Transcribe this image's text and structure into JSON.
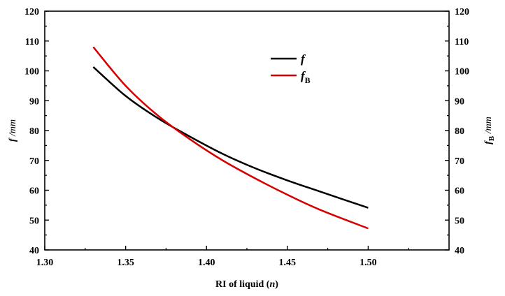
{
  "chart_data": {
    "type": "line",
    "xlabel_parts": [
      "RI of liquid (",
      "n",
      ")"
    ],
    "ylabel_left_parts": [
      "f",
      " /mm"
    ],
    "ylabel_right_parts": [
      "f",
      "B",
      " /mm"
    ],
    "xlim": [
      1.3,
      1.55
    ],
    "ylim": [
      40,
      120
    ],
    "x_ticks": [
      "1.30",
      "1.35",
      "1.40",
      "1.45",
      "1.50"
    ],
    "y_ticks": [
      "40",
      "50",
      "60",
      "70",
      "80",
      "90",
      "100",
      "110",
      "120"
    ],
    "grid": false,
    "legend_position": "top-right",
    "series": [
      {
        "name_parts": [
          "f",
          ""
        ],
        "color": "#000000",
        "x": [
          1.33,
          1.35,
          1.37,
          1.39,
          1.41,
          1.43,
          1.45,
          1.47,
          1.5
        ],
        "y": [
          101.3,
          91.6,
          84.1,
          77.9,
          72.2,
          67.4,
          63.3,
          59.6,
          54.1
        ]
      },
      {
        "name_parts": [
          "f",
          "B"
        ],
        "color": "#d60000",
        "x": [
          1.33,
          1.35,
          1.37,
          1.39,
          1.41,
          1.43,
          1.45,
          1.47,
          1.5
        ],
        "y": [
          108.0,
          95.0,
          85.0,
          77.0,
          70.0,
          64.0,
          58.5,
          53.5,
          47.2
        ]
      }
    ]
  }
}
